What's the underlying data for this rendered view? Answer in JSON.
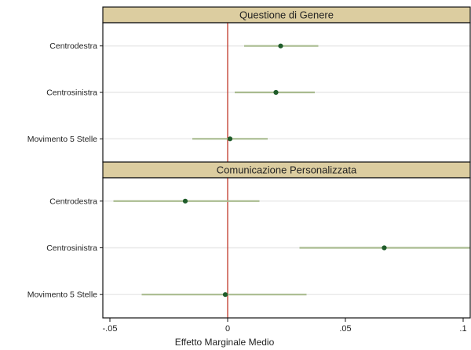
{
  "chart_data": {
    "type": "scatter",
    "subtype": "coefficient-plot",
    "xlabel": "Effetto Marginale Medio",
    "xlim": [
      -0.053,
      0.103
    ],
    "xticks": [
      -0.05,
      0,
      0.05,
      0.1
    ],
    "xtick_labels": [
      "-.05",
      "0",
      ".05",
      ".1"
    ],
    "reference_line": {
      "x": 0,
      "color": "#c0392b"
    },
    "grid": true,
    "panels": [
      {
        "title": "Questione di Genere",
        "rows": [
          {
            "label": "Centrodestra",
            "estimate": 0.0225,
            "ci": [
              0.007,
              0.0385
            ]
          },
          {
            "label": "Centrosinistra",
            "estimate": 0.0205,
            "ci": [
              0.003,
              0.037
            ]
          },
          {
            "label": "Movimento 5 Stelle",
            "estimate": 0.001,
            "ci": [
              -0.015,
              0.017
            ]
          }
        ]
      },
      {
        "title": "Comunicazione Personalizzata",
        "rows": [
          {
            "label": "Centrodestra",
            "estimate": -0.018,
            "ci": [
              -0.0485,
              0.0135
            ]
          },
          {
            "label": "Centrosinistra",
            "estimate": 0.0665,
            "ci": [
              0.0305,
              0.103
            ]
          },
          {
            "label": "Movimento 5 Stelle",
            "estimate": -0.001,
            "ci": [
              -0.0365,
              0.0335
            ]
          }
        ]
      }
    ],
    "colors": {
      "point": "#1f5c2a",
      "ci_line": "#a9bb8f",
      "header_bg": "#dccda0",
      "frame": "#111111",
      "grid": "#e8e8e8"
    }
  }
}
